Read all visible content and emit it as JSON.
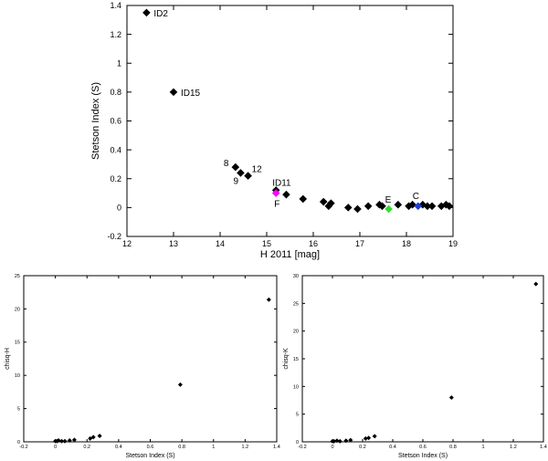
{
  "chart_data": [
    {
      "type": "scatter",
      "title": "",
      "xlabel": "H 2011 [mag]",
      "ylabel": "Stetson Index (S)",
      "xlim": [
        12,
        19
      ],
      "ylim": [
        -0.2,
        1.4
      ],
      "xticks": [
        "12",
        "13",
        "14",
        "15",
        "16",
        "17",
        "18",
        "19"
      ],
      "yticks": [
        "-0.2",
        "0",
        "0.2",
        "0.4",
        "0.6",
        "0.8",
        "1",
        "1.2",
        "1.4"
      ],
      "marker_color": "#000000",
      "grid": false,
      "points": [
        {
          "x": 12.42,
          "y": 1.35,
          "label": "ID2"
        },
        {
          "x": 13.0,
          "y": 0.8,
          "label": "ID15"
        },
        {
          "x": 14.33,
          "y": 0.28,
          "label": "8"
        },
        {
          "x": 14.44,
          "y": 0.24,
          "label": "9"
        },
        {
          "x": 14.6,
          "y": 0.22,
          "label": "12"
        },
        {
          "x": 15.2,
          "y": 0.12,
          "label": "ID11"
        },
        {
          "x": 15.42,
          "y": 0.09
        },
        {
          "x": 15.78,
          "y": 0.06
        },
        {
          "x": 16.22,
          "y": 0.04
        },
        {
          "x": 16.33,
          "y": 0.01
        },
        {
          "x": 16.38,
          "y": 0.03
        },
        {
          "x": 16.75,
          "y": 0.0
        },
        {
          "x": 16.95,
          "y": -0.01
        },
        {
          "x": 17.18,
          "y": 0.01
        },
        {
          "x": 17.42,
          "y": 0.02
        },
        {
          "x": 17.48,
          "y": 0.01
        },
        {
          "x": 17.82,
          "y": 0.02
        },
        {
          "x": 18.05,
          "y": 0.01
        },
        {
          "x": 18.13,
          "y": 0.02
        },
        {
          "x": 18.35,
          "y": 0.02
        },
        {
          "x": 18.45,
          "y": 0.01
        },
        {
          "x": 18.55,
          "y": 0.01
        },
        {
          "x": 18.75,
          "y": 0.01
        },
        {
          "x": 18.85,
          "y": 0.02
        },
        {
          "x": 18.92,
          "y": 0.01
        }
      ],
      "highlighted_points": [
        {
          "x": 15.2,
          "y": 0.1,
          "label": "F",
          "color": "#ff00ff"
        },
        {
          "x": 17.62,
          "y": -0.01,
          "label": "E",
          "color": "#33dd33"
        },
        {
          "x": 18.25,
          "y": 0.01,
          "label": "C",
          "color": "#1f3fd6"
        }
      ]
    },
    {
      "type": "scatter",
      "title": "",
      "xlabel": "Stetson Index (S)",
      "ylabel": "chisq-H",
      "xlim": [
        -0.2,
        1.4
      ],
      "ylim": [
        0,
        25
      ],
      "xticks": [
        "-0.2",
        "0",
        "0.2",
        "0.4",
        "0.6",
        "0.8",
        "1",
        "1.2",
        "1.4"
      ],
      "yticks": [
        "0",
        "5",
        "10",
        "15",
        "20",
        "25"
      ],
      "marker_color": "#000000",
      "points": [
        {
          "x": 0.0,
          "y": 0.1
        },
        {
          "x": 0.01,
          "y": 0.1
        },
        {
          "x": 0.02,
          "y": 0.2
        },
        {
          "x": 0.04,
          "y": 0.1
        },
        {
          "x": 0.06,
          "y": 0.1
        },
        {
          "x": 0.09,
          "y": 0.2
        },
        {
          "x": 0.12,
          "y": 0.3
        },
        {
          "x": 0.22,
          "y": 0.5
        },
        {
          "x": 0.24,
          "y": 0.7
        },
        {
          "x": 0.28,
          "y": 0.9
        },
        {
          "x": 0.79,
          "y": 8.6
        },
        {
          "x": 1.35,
          "y": 21.4
        }
      ]
    },
    {
      "type": "scatter",
      "title": "",
      "xlabel": "Stetson Index (S)",
      "ylabel": "chisq-K",
      "xlim": [
        -0.2,
        1.4
      ],
      "ylim": [
        0,
        30
      ],
      "xticks": [
        "-0.2",
        "0",
        "0.2",
        "0.4",
        "0.6",
        "0.8",
        "1",
        "1.2",
        "1.4"
      ],
      "yticks": [
        "0",
        "5",
        "10",
        "15",
        "20",
        "25",
        "30"
      ],
      "marker_color": "#000000",
      "points": [
        {
          "x": 0.0,
          "y": 0.1
        },
        {
          "x": 0.01,
          "y": 0.1
        },
        {
          "x": 0.03,
          "y": 0.2
        },
        {
          "x": 0.05,
          "y": 0.1
        },
        {
          "x": 0.09,
          "y": 0.2
        },
        {
          "x": 0.12,
          "y": 0.3
        },
        {
          "x": 0.22,
          "y": 0.6
        },
        {
          "x": 0.24,
          "y": 0.7
        },
        {
          "x": 0.28,
          "y": 1.0
        },
        {
          "x": 0.79,
          "y": 8.0
        },
        {
          "x": 1.35,
          "y": 28.5
        }
      ]
    }
  ]
}
